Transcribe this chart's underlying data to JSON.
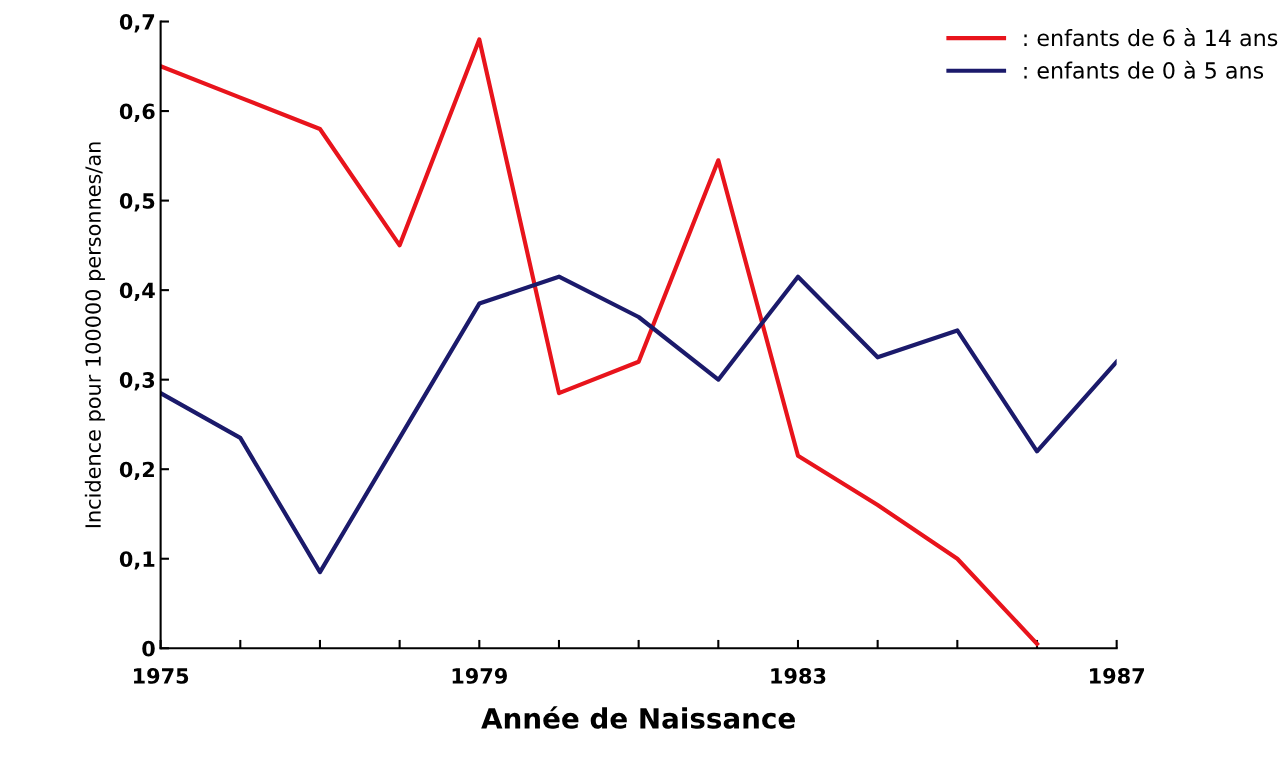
{
  "chart_data": {
    "type": "line",
    "xlabel": "Année de Naissance",
    "ylabel": "Incidence pour 100000 personnes/an",
    "x": [
      1975,
      1976,
      1977,
      1978,
      1979,
      1980,
      1981,
      1982,
      1983,
      1984,
      1985,
      1986,
      1987
    ],
    "series": [
      {
        "name": ": enfants de 6 à 14 ans",
        "color": "#e8141c",
        "values": [
          0.65,
          0.615,
          0.58,
          0.45,
          0.68,
          0.285,
          0.32,
          0.545,
          0.215,
          0.16,
          0.1,
          0.005,
          null
        ]
      },
      {
        "name": ": enfants de 0 à 5 ans",
        "color": "#1b1a6b",
        "values": [
          0.285,
          0.235,
          0.085,
          0.235,
          0.385,
          0.415,
          0.37,
          0.3,
          0.415,
          0.325,
          0.355,
          0.22,
          0.32
        ]
      }
    ],
    "xlim": [
      1975,
      1987
    ],
    "xticks": [
      1975,
      {
        "value": 1976,
        "label": null
      },
      {
        "value": 1977,
        "label": null
      },
      {
        "value": 1978,
        "label": null
      },
      1979,
      {
        "value": 1980,
        "label": null
      },
      {
        "value": 1981,
        "label": null
      },
      {
        "value": 1982,
        "label": null
      },
      1983,
      {
        "value": 1984,
        "label": null
      },
      {
        "value": 1985,
        "label": null
      },
      {
        "value": 1986,
        "label": null
      },
      1987
    ],
    "ylim": [
      0,
      0.7
    ],
    "yticks": [
      {
        "value": 0,
        "label": "0"
      },
      {
        "value": 0.1,
        "label": "0,1"
      },
      {
        "value": 0.2,
        "label": "0,2"
      },
      {
        "value": 0.3,
        "label": "0,3"
      },
      {
        "value": 0.4,
        "label": "0,4"
      },
      {
        "value": 0.5,
        "label": "0,5"
      },
      {
        "value": 0.6,
        "label": "0,6"
      },
      {
        "value": 0.7,
        "label": "0,7"
      }
    ],
    "grid": false,
    "legend": "top right",
    "marker": "none",
    "line_style": "solid"
  }
}
